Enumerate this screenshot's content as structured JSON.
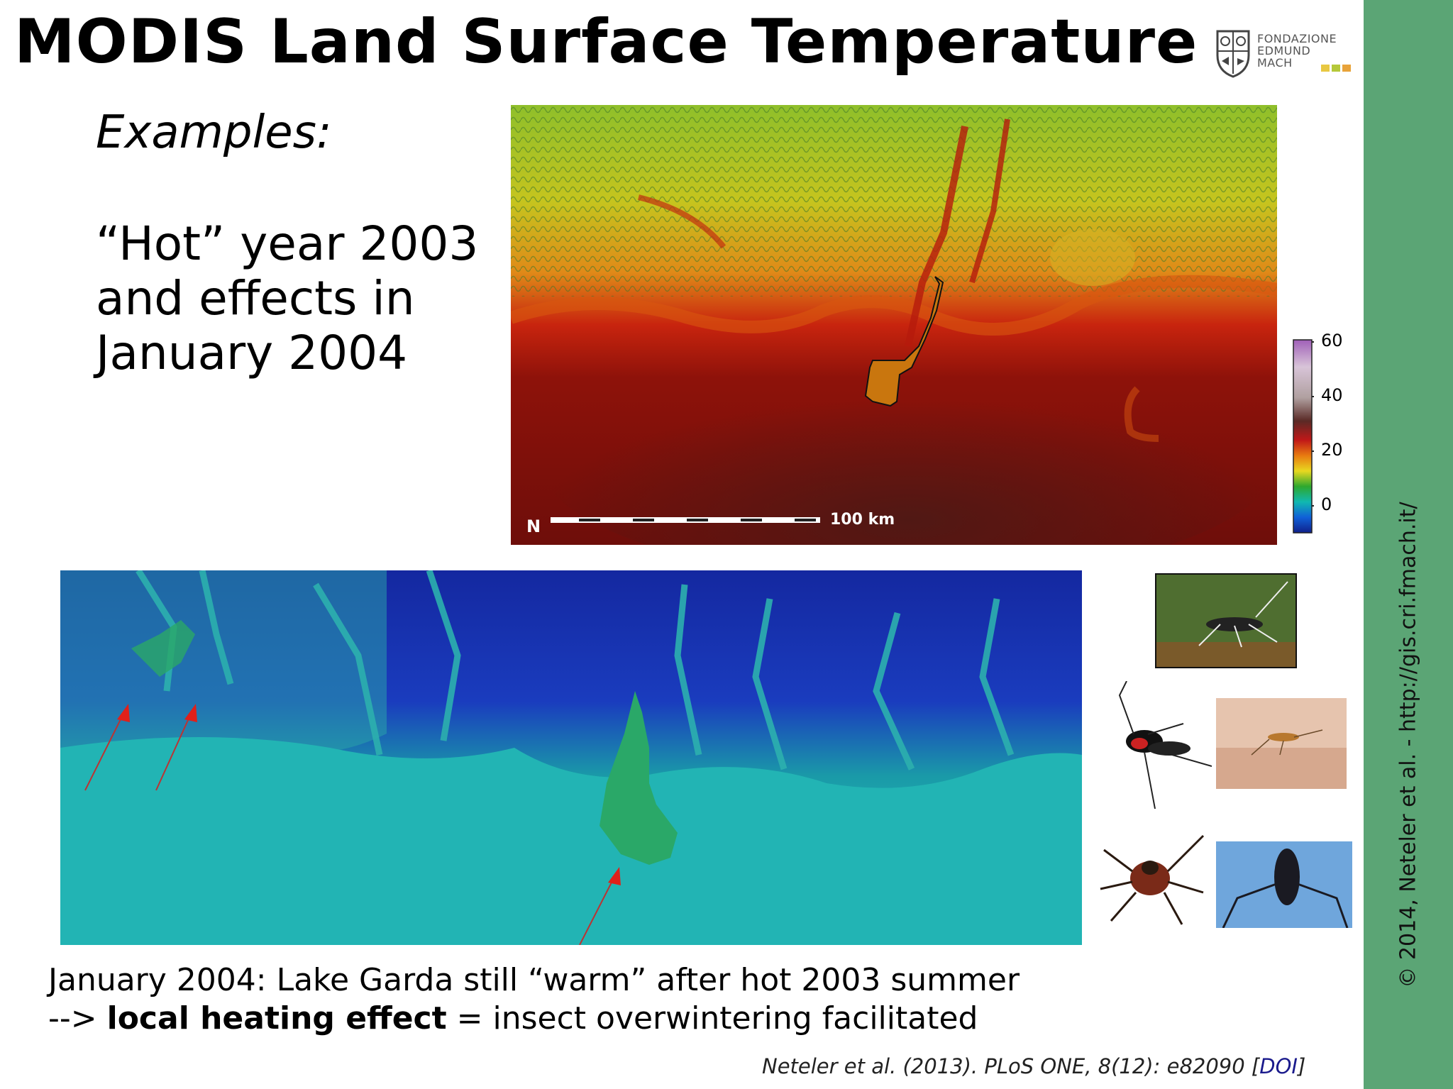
{
  "title": "MODIS Land Surface Temperature",
  "logo": {
    "line1": "FONDAZIONE",
    "line2": "EDMUND",
    "line3": "MACH",
    "square_colors": [
      "#e8c842",
      "#b5c83a",
      "#e8a33a"
    ]
  },
  "examples_label": "Examples:",
  "hot_year": {
    "line1": "“Hot” year 2003",
    "line2": "and effects in",
    "line3": "January 2004"
  },
  "top_map": {
    "scale_label": "100 km",
    "colorbar_ticks": [
      "60",
      "40",
      "20",
      "0"
    ]
  },
  "caption": {
    "line1": "January 2004: Lake Garda still “warm” after hot 2003 summer",
    "line2_prefix": "--> ",
    "line2_bold": "local heating effect",
    "line2_suffix": " = insect overwintering facilitated"
  },
  "reference": {
    "text": "Neteler et al. (2013). PLoS ONE, 8(12): e82090 [",
    "link": "DOI",
    "close": "]"
  },
  "sidebar_text": "© 2014, Neteler et al. - http://gis.cri.fmach.it/",
  "colors": {
    "sidebar": "#5ba575",
    "arrow": "#e0201a",
    "doi_link": "#1a1a8c"
  }
}
